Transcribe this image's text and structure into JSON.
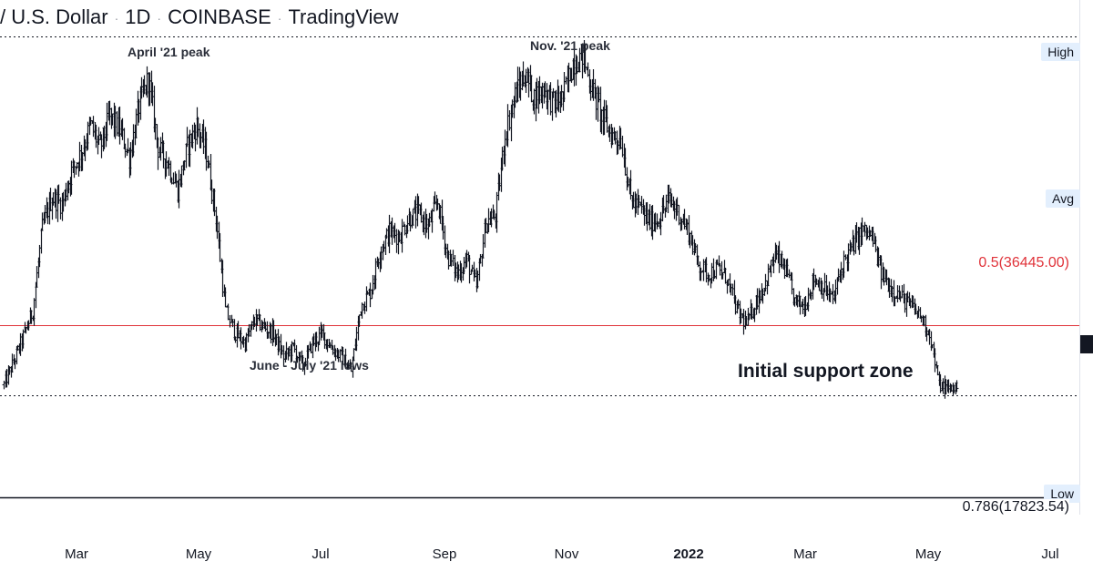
{
  "header": {
    "symbol_text": "/ U.S. Dollar",
    "interval": "1D",
    "exchange": "COINBASE",
    "source": "TradingView"
  },
  "price_tags": {
    "high": "High",
    "avg": "Avg",
    "low": "Low"
  },
  "fib_levels": {
    "fib_05": "0.5(36445.00)",
    "fib_786": "0.786(17823.54)"
  },
  "annotations": {
    "april_peak": "April '21 peak",
    "nov_peak": "Nov. '21 peak",
    "june_july_lows": "June - July '21 lows",
    "support_zone": "Initial support zone"
  },
  "colors": {
    "fib_05": "#e0333a",
    "bars": "#131722",
    "tag_bg": "#e3effd",
    "marker": "#131722"
  },
  "chart_data": {
    "type": "ohlc",
    "title": "",
    "x_tick_labels": [
      "Mar",
      "May",
      "Jul",
      "Sep",
      "Nov",
      "2022",
      "Mar",
      "May",
      "Jul"
    ],
    "x_tick_bold": [
      false,
      false,
      false,
      false,
      false,
      true,
      false,
      false,
      false
    ],
    "fib_05": 36445.0,
    "fib_786": 17823.54,
    "high_level": 67600,
    "low_level": 28900,
    "ylim": [
      16000,
      71500
    ],
    "closes_weekly": [
      30000,
      32500,
      35200,
      38000,
      47000,
      50200,
      49500,
      53000,
      55000,
      58000,
      55500,
      59000,
      57500,
      54500,
      60000,
      63000,
      55500,
      54000,
      51000,
      55600,
      58000,
      55000,
      48000,
      38000,
      35500,
      34500,
      37000,
      36200,
      35500,
      33000,
      34000,
      32000,
      34500,
      35500,
      34000,
      33000,
      31500,
      38500,
      40000,
      44500,
      46500,
      46000,
      48000,
      48500,
      47000,
      49800,
      44000,
      42000,
      43500,
      40500,
      47500,
      48200,
      57000,
      61200,
      63500,
      61000,
      62000,
      60300,
      61000,
      64800,
      65500,
      62000,
      59000,
      57000,
      56500,
      50000,
      49000,
      47500,
      48000,
      50000,
      48500,
      46500,
      43000,
      42000,
      42500,
      41500,
      38000,
      36500,
      39000,
      41000,
      44000,
      42500,
      39000,
      38500,
      41500,
      40500,
      39200,
      43000,
      45000,
      46600,
      46000,
      42000,
      40500,
      39500,
      38500,
      37500,
      35500,
      30000,
      29500,
      30000
    ]
  }
}
